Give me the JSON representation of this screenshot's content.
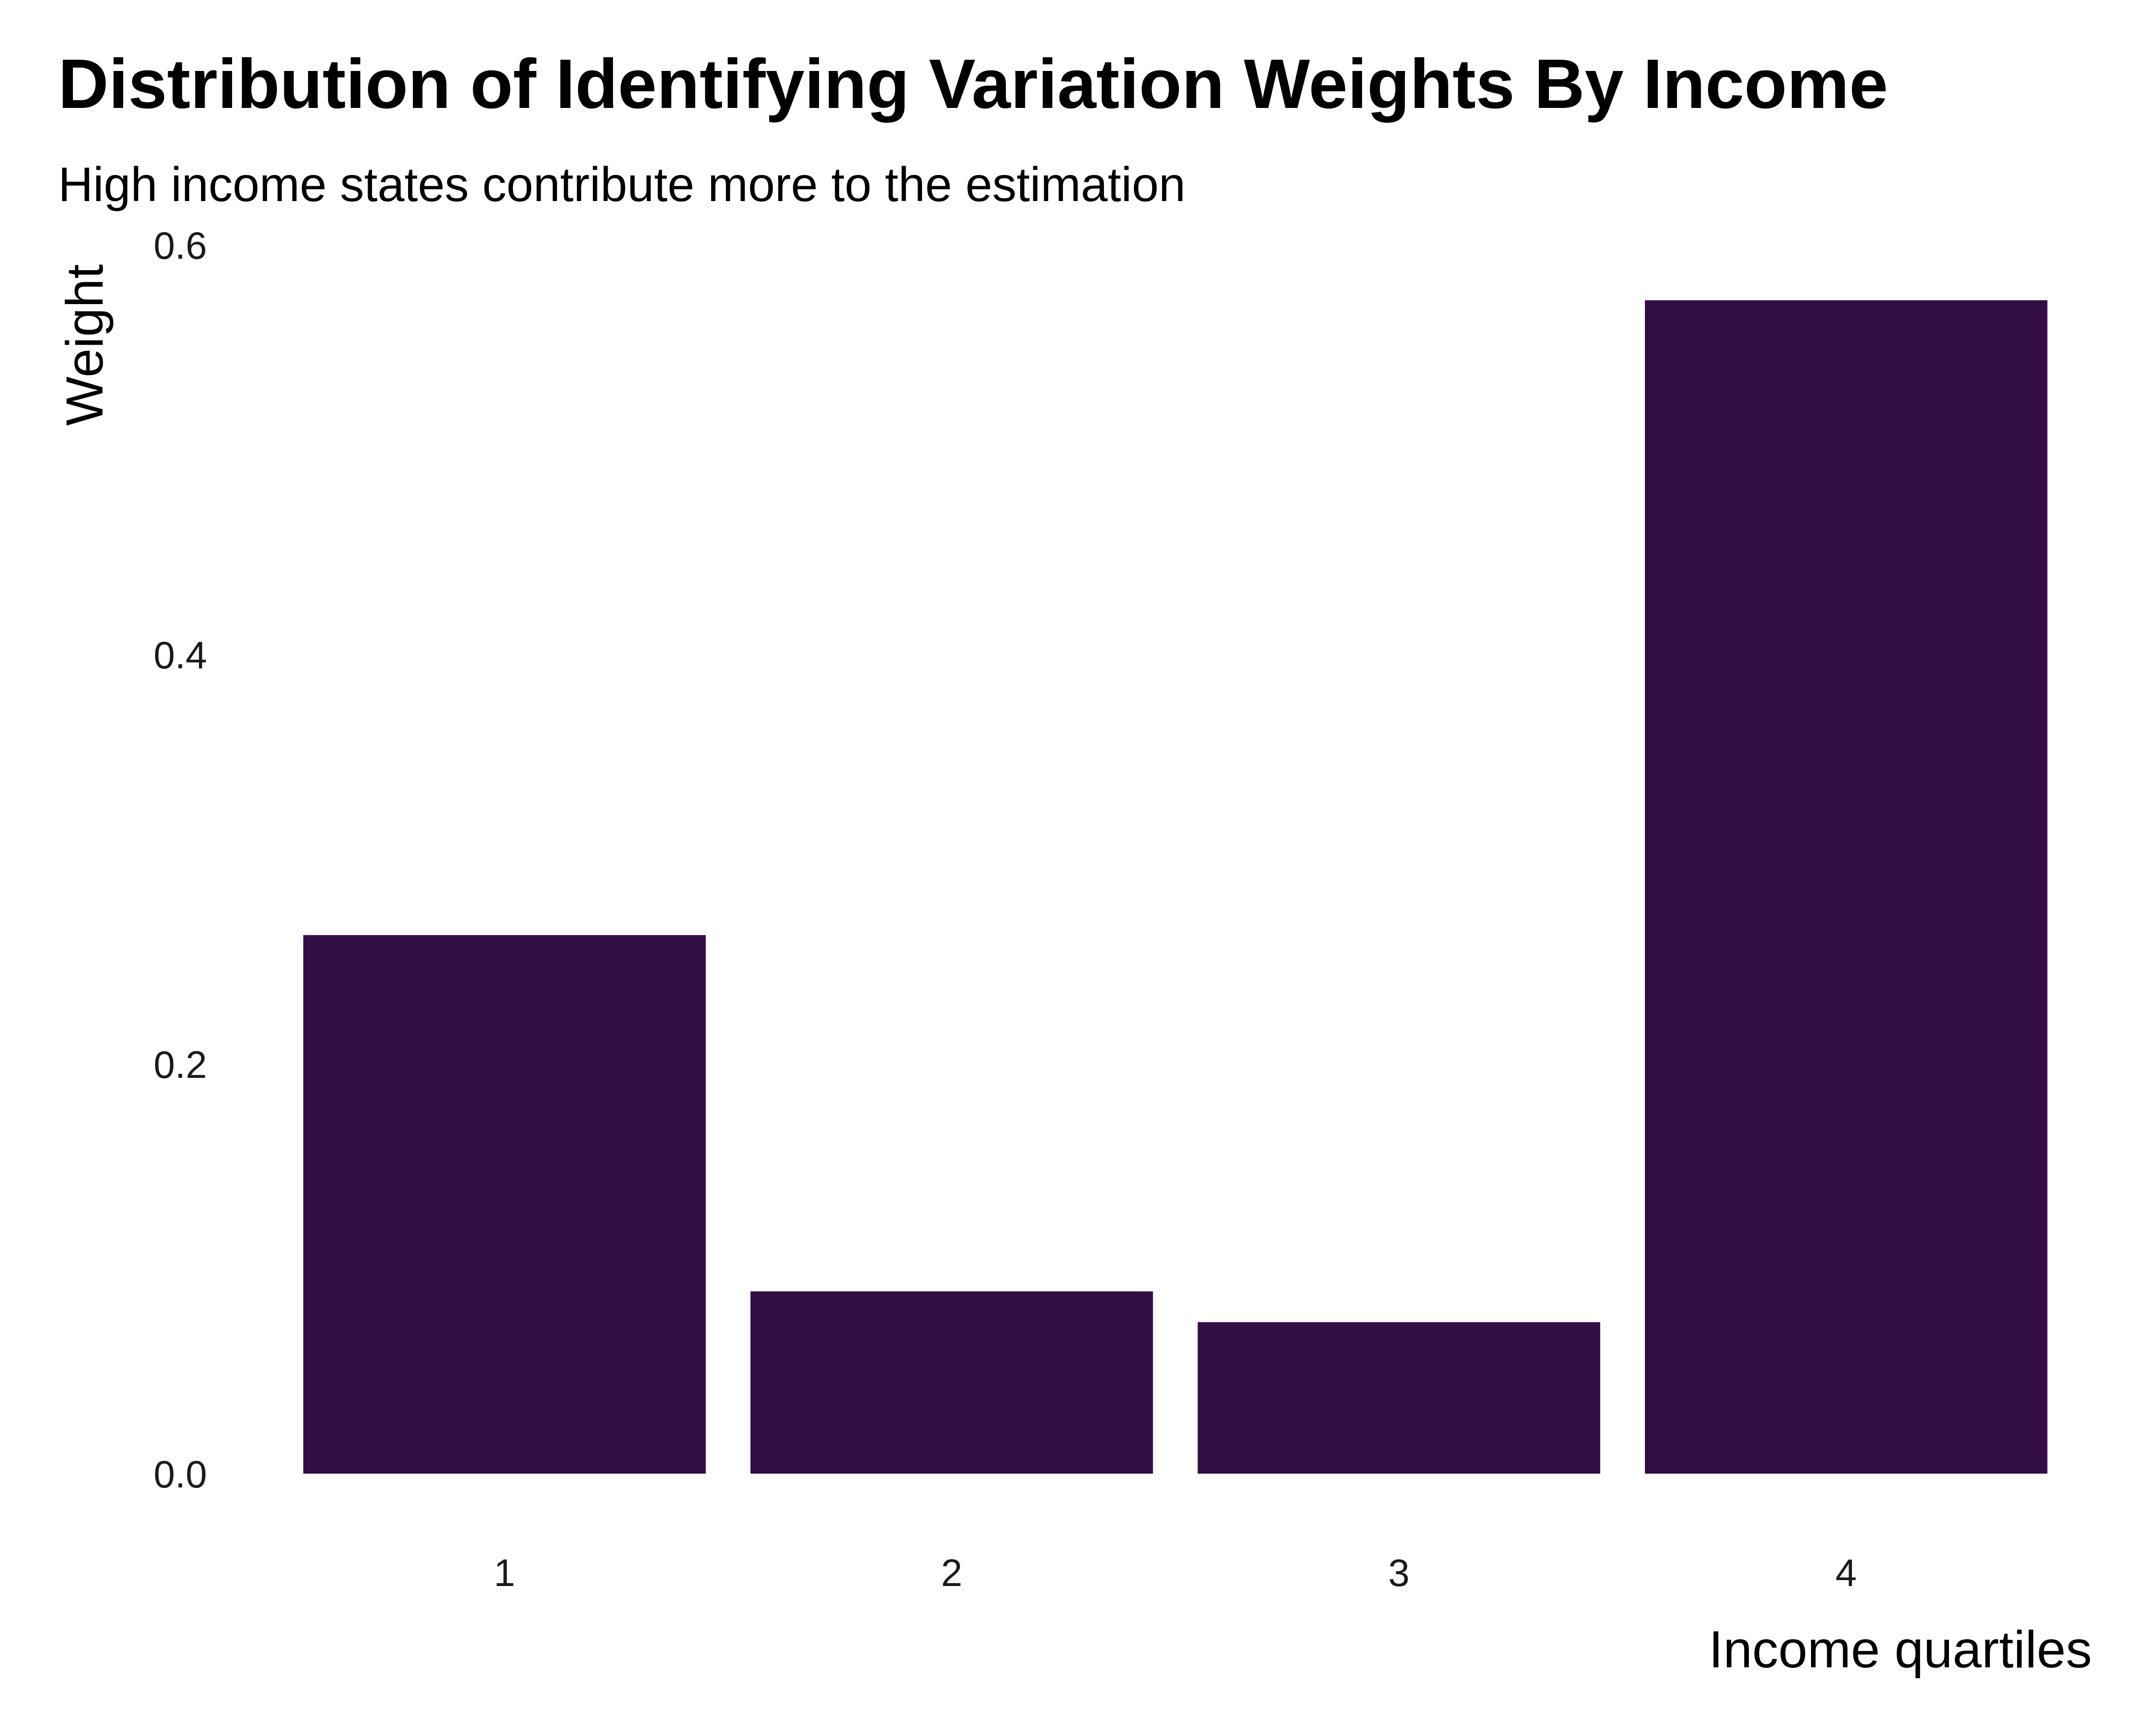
{
  "chart_data": {
    "type": "bar",
    "title": "Distribution of Identifying Variation Weights By Income",
    "subtitle": "High income states contribute more to the estimation",
    "xlabel": "Income quartiles",
    "ylabel": "Weight",
    "categories": [
      "1",
      "2",
      "3",
      "4"
    ],
    "values": [
      0.263,
      0.089,
      0.074,
      0.573
    ],
    "ylim": [
      0,
      0.6
    ],
    "yticks": [
      "0.0",
      "0.2",
      "0.4",
      "0.6"
    ],
    "grid": false,
    "legend": "none",
    "bar_color": "#330E46"
  }
}
